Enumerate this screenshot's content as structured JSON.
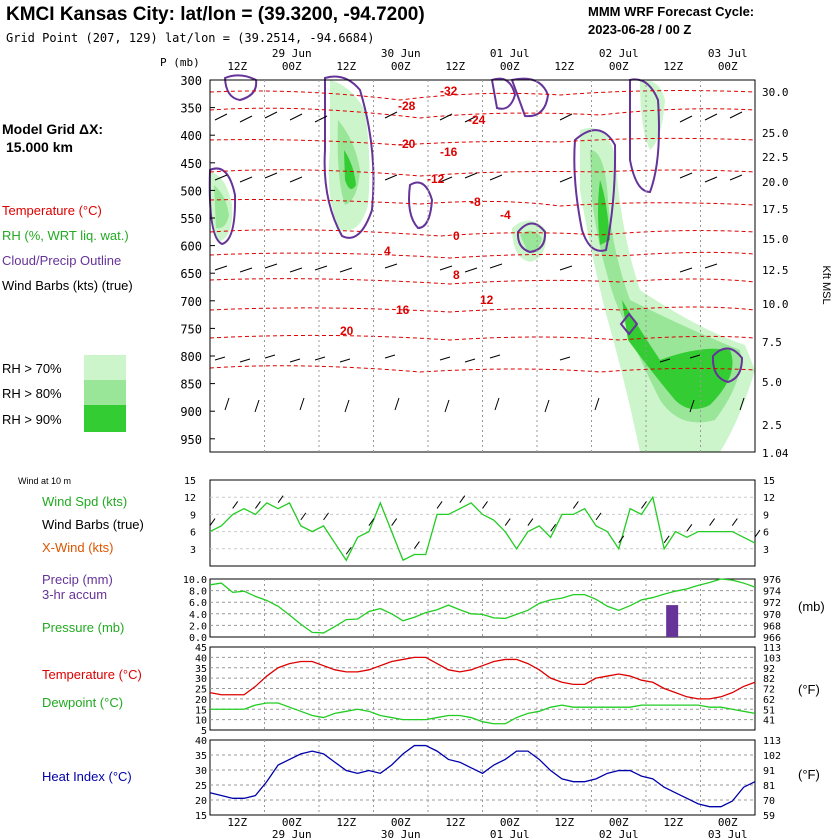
{
  "header": {
    "title": "KMCI Kansas City:  lat/lon = (39.3200, -94.7200)",
    "grid_point": "Grid Point (207, 129) lat/lon = (39.2514, -94.6684)",
    "cycle_label": "MMM WRF Forecast Cycle:",
    "cycle_value": "2023-06-28 / 00  Z"
  },
  "time_axis": {
    "ticks": [
      "12Z",
      "00Z",
      "12Z",
      "00Z",
      "12Z",
      "00Z",
      "12Z",
      "00Z",
      "12Z",
      "00Z"
    ],
    "dates": [
      "29 Jun",
      "30 Jun",
      "01 Jul",
      "02 Jul",
      "03 Jul"
    ]
  },
  "left_legend": {
    "grid_label": "Model Grid ΔX:",
    "grid_value": "15.000 km",
    "temperature": "Temperature (°C)",
    "rh": "RH (%, WRT liq. wat.)",
    "cloud": "Cloud/Precip Outline",
    "wind_barbs": "Wind Barbs (kts) (true)",
    "rh70": "RH > 70%",
    "rh80": "RH > 80%",
    "rh90": "RH > 90%",
    "wind10": "Wind at 10 m",
    "wind_spd": "Wind Spd (kts)",
    "wind_barbs_true": "Wind Barbs (true)",
    "xwind": "X-Wind (kts)",
    "precip": "Precip (mm)",
    "precip_accum": "3-hr accum",
    "pressure": "Pressure (mb)",
    "temp_c": "Temperature (°C)",
    "dewpoint_c": "Dewpoint (°C)",
    "heat_index_c": "Heat Index (°C)"
  },
  "right_labels": {
    "kft": "Kft MSL",
    "mb": "(mb)",
    "degF1": "(°F)",
    "degF2": "(°F)"
  },
  "colors": {
    "temperature": "#dd0000",
    "rh": "#22cc22",
    "cloud": "#663399",
    "dewpoint": "#22cc22",
    "heat_index": "#0000aa",
    "xwind": "#dd5500",
    "rh70": "#ccf5cc",
    "rh80": "#99e699",
    "rh90": "#33cc33"
  },
  "chart_data": [
    {
      "type": "heatmap",
      "title": "Vertical cross-section",
      "ylabel": "P (mb)",
      "y2label": "Kft MSL",
      "pressure_ticks": [
        "300",
        "350",
        "400",
        "450",
        "500",
        "550",
        "600",
        "650",
        "700",
        "750",
        "800",
        "850",
        "900",
        "950"
      ],
      "kft_ticks": [
        "30.0",
        "25.0",
        "22.5",
        "20.0",
        "17.5",
        "15.0",
        "12.5",
        "10.0",
        "7.5",
        "5.0",
        "2.5",
        "1.04"
      ],
      "temperature_contour_labels": [
        "-32",
        "-28",
        "-24",
        "-20",
        "-16",
        "-12",
        "-8",
        "-4",
        "0",
        "4",
        "8",
        "12",
        "16",
        "20"
      ]
    },
    {
      "type": "line",
      "title": "Wind Spd (kts)",
      "ylim": [
        0,
        15
      ],
      "y_ticks": [
        "15",
        "12",
        "9",
        "6",
        "3"
      ],
      "x": [
        0,
        1,
        2,
        3,
        4,
        5,
        6,
        7,
        8,
        9,
        10,
        11,
        12,
        13,
        14,
        15,
        16,
        17,
        18,
        19,
        20,
        21,
        22,
        23,
        24,
        25,
        26,
        27,
        28,
        29,
        30,
        31,
        32,
        33,
        34,
        35,
        36,
        37,
        38,
        39,
        40,
        41,
        42,
        43,
        44,
        45,
        46,
        47,
        48
      ],
      "values": [
        6,
        7,
        9,
        10,
        9,
        11,
        10,
        11,
        7,
        6,
        7,
        4,
        1,
        5,
        6,
        11,
        6,
        1,
        2,
        2,
        9,
        9,
        10,
        11,
        9,
        8,
        6,
        3,
        6,
        7,
        5,
        9,
        9,
        10,
        7,
        6,
        3,
        10,
        9,
        12,
        3,
        6,
        5,
        6,
        6,
        6,
        6,
        5,
        4
      ]
    },
    {
      "type": "line",
      "title": "Pressure (mb) / Precip (mm)",
      "y_left_ticks": [
        "10.0",
        "8.0",
        "6.0",
        "4.0",
        "2.0",
        "0.0"
      ],
      "y_right_ticks": [
        "976",
        "974",
        "972",
        "970",
        "968",
        "966"
      ],
      "pressure_mb": [
        975.0,
        975.3,
        973.7,
        973.9,
        973.0,
        972.3,
        971.3,
        969.8,
        968.2,
        966.8,
        966.7,
        967.8,
        969.0,
        969.1,
        970.4,
        970.9,
        970.0,
        968.8,
        969.4,
        970.2,
        970.7,
        971.5,
        970.7,
        970.0,
        969.9,
        969.3,
        969.2,
        969.9,
        970.6,
        971.8,
        972.4,
        972.7,
        973.3,
        973.3,
        972.5,
        971.3,
        970.6,
        971.4,
        972.4,
        972.8,
        973.4,
        973.9,
        974.3,
        974.9,
        975.4,
        976.0,
        975.8,
        975.3,
        974.6
      ],
      "precip_3hr": [
        {
          "hour": 40,
          "mm": 5.5
        }
      ]
    },
    {
      "type": "line",
      "title": "Temperature / Dewpoint",
      "y_left_ticks": [
        "45",
        "40",
        "35",
        "30",
        "25",
        "20",
        "15",
        "10",
        "5"
      ],
      "y_right_ticks": [
        "113",
        "103",
        "92",
        "82",
        "72",
        "62",
        "51",
        "41"
      ],
      "temperature_c": [
        23,
        22,
        22,
        22,
        26,
        31,
        35,
        37,
        38,
        38,
        36,
        34,
        33,
        33,
        34,
        36,
        38,
        39,
        40,
        40,
        37,
        34,
        33,
        34,
        36,
        38,
        39,
        39,
        37,
        34,
        30,
        28,
        27,
        27,
        30,
        31,
        32,
        31,
        29,
        28,
        25,
        23,
        21,
        20,
        20,
        21,
        23,
        26,
        28
      ],
      "dewpoint_c": [
        15,
        15,
        15,
        15,
        17,
        18,
        18,
        16,
        14,
        12,
        11,
        13,
        14,
        15,
        14,
        12,
        11,
        10,
        10,
        10,
        11,
        12,
        12,
        11,
        9,
        8,
        8,
        11,
        13,
        14,
        16,
        17,
        16,
        16,
        16,
        16,
        16,
        16,
        17,
        17,
        17,
        17,
        17,
        17,
        16,
        16,
        15,
        14,
        13
      ]
    },
    {
      "type": "line",
      "title": "Heat Index",
      "y_left_ticks": [
        "40",
        "35",
        "30",
        "25",
        "20",
        "15"
      ],
      "y_right_ticks": [
        "113",
        "102",
        "91",
        "81",
        "70",
        "59"
      ],
      "heat_index_c": [
        23,
        22,
        21,
        21,
        22,
        27,
        33,
        35,
        37,
        38,
        37,
        34,
        31,
        30,
        31,
        30,
        33,
        37,
        40,
        40,
        38,
        35,
        34,
        32,
        30,
        33,
        35,
        38,
        38,
        35,
        31,
        28,
        27,
        27,
        28,
        30,
        31,
        31,
        29,
        28,
        25,
        23,
        21,
        19,
        18,
        18,
        20,
        25,
        27
      ]
    }
  ]
}
